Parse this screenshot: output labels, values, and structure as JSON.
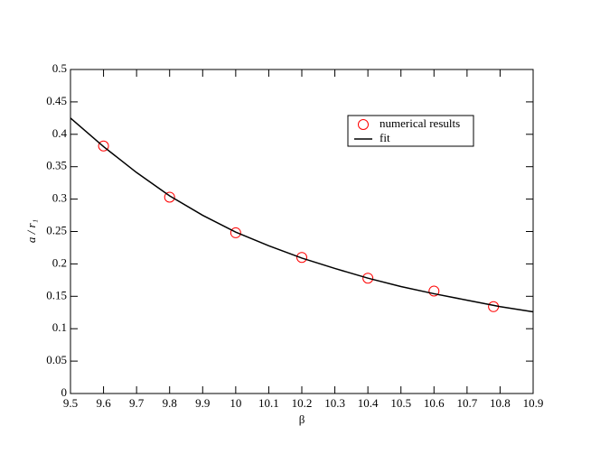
{
  "chart_data": {
    "type": "scatter",
    "xlabel": "β",
    "ylabel": "a / r₁",
    "xlim": [
      9.5,
      10.9
    ],
    "ylim": [
      0,
      0.5
    ],
    "xticks": [
      9.5,
      9.6,
      9.7,
      9.8,
      9.9,
      10,
      10.1,
      10.2,
      10.3,
      10.4,
      10.5,
      10.6,
      10.7,
      10.8,
      10.9
    ],
    "yticks": [
      0,
      0.05,
      0.1,
      0.15,
      0.2,
      0.25,
      0.3,
      0.35,
      0.4,
      0.45,
      0.5
    ],
    "legend": "upper right",
    "series": [
      {
        "name": "numerical results",
        "color": "#ff0000",
        "marker": "circle",
        "x": [
          9.6,
          9.8,
          10.0,
          10.2,
          10.4,
          10.6,
          10.78
        ],
        "values": [
          0.382,
          0.303,
          0.248,
          0.21,
          0.178,
          0.158,
          0.134
        ]
      },
      {
        "name": "fit",
        "color": "#000000",
        "marker": "line",
        "x": [
          9.5,
          9.6,
          9.7,
          9.8,
          9.9,
          10.0,
          10.1,
          10.2,
          10.3,
          10.4,
          10.5,
          10.6,
          10.7,
          10.8,
          10.9
        ],
        "values": [
          0.425,
          0.381,
          0.341,
          0.305,
          0.275,
          0.249,
          0.228,
          0.209,
          0.193,
          0.178,
          0.165,
          0.154,
          0.144,
          0.134,
          0.126
        ]
      }
    ]
  }
}
